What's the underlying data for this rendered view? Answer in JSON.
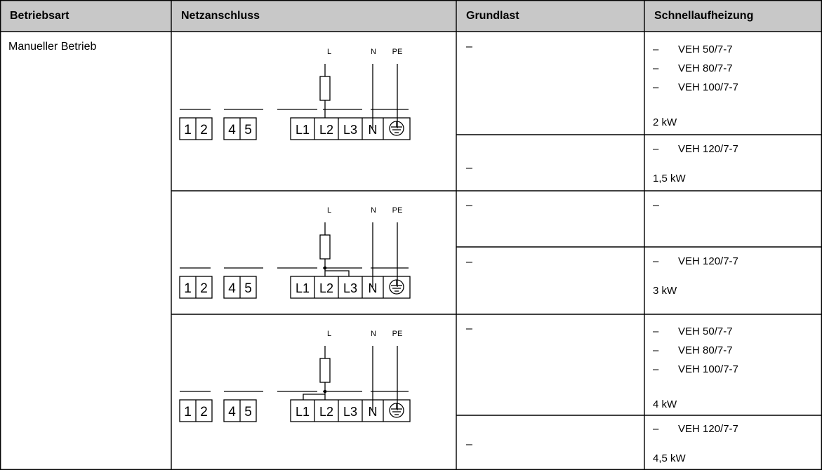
{
  "table": {
    "headers": {
      "operating_mode": "Betriebsart",
      "mains_connection": "Netzanschluss",
      "base_load": "Grundlast",
      "rapid_heating": "Schnellaufheizung"
    },
    "operating_mode_value": "Manueller Betrieb",
    "diagram_labels": {
      "line_l": "L",
      "line_n": "N",
      "line_pe": "PE",
      "terminals": [
        "1",
        "2",
        "4",
        "5",
        "L1",
        "L2",
        "L3",
        "N"
      ]
    },
    "groups": [
      {
        "rows": [
          {
            "base_load": "–",
            "dash": "–",
            "models": [
              "VEH 50/7-7",
              "VEH 80/7-7",
              "VEH 100/7-7"
            ],
            "power": "2 kW"
          },
          {
            "base_load": "–",
            "dash": "–",
            "models": [
              "VEH 120/7-7"
            ],
            "power": "1,5 kW"
          }
        ]
      },
      {
        "rows": [
          {
            "base_load": "–",
            "dash": "–",
            "models": [],
            "power": ""
          },
          {
            "base_load": "–",
            "dash": "–",
            "models": [
              "VEH 120/7-7"
            ],
            "power": "3 kW"
          }
        ]
      },
      {
        "rows": [
          {
            "base_load": "–",
            "dash": "–",
            "models": [
              "VEH 50/7-7",
              "VEH 80/7-7",
              "VEH 100/7-7"
            ],
            "power": "4 kW"
          },
          {
            "base_load": "–",
            "dash": "–",
            "models": [
              "VEH 120/7-7"
            ],
            "power": "4,5 kW"
          }
        ]
      }
    ]
  }
}
